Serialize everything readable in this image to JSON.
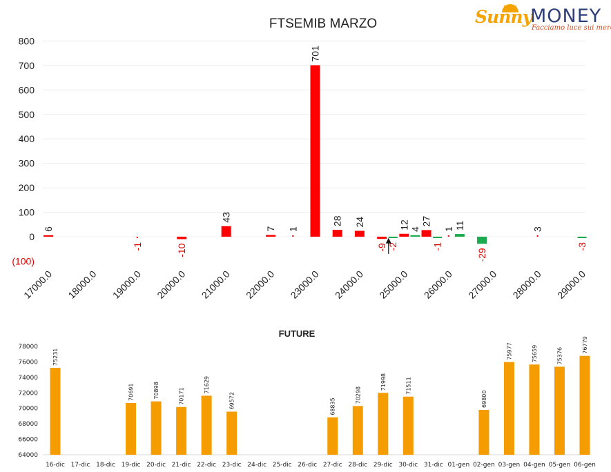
{
  "logo": {
    "brand_part1": "Sunny",
    "brand_part2": "MONEY",
    "tagline": "Facciamo luce sui mercati",
    "colors": {
      "sunny": "#f5a300",
      "money": "#2f3f7a",
      "tagline": "#d44a1c"
    }
  },
  "chart_data": [
    {
      "type": "bar",
      "title": "FTSEMIB MARZO",
      "xlabel": "",
      "ylabel": "",
      "ylim": [
        -100,
        800
      ],
      "yticks": [
        -100,
        0,
        100,
        200,
        300,
        400,
        500,
        600,
        700,
        800
      ],
      "ytick_labels": [
        "(100)",
        "0",
        "100",
        "200",
        "300",
        "400",
        "500",
        "600",
        "700",
        "800"
      ],
      "xlim": [
        17000,
        29000
      ],
      "xticks": [
        17000,
        18000,
        19000,
        20000,
        21000,
        22000,
        23000,
        24000,
        25000,
        26000,
        27000,
        28000,
        29000
      ],
      "xtick_labels": [
        "17000.0",
        "18000.0",
        "19000.0",
        "20000.0",
        "21000.0",
        "22000.0",
        "23000.0",
        "24000.0",
        "25000.0",
        "26000.0",
        "27000.0",
        "28000.0",
        "29000.0"
      ],
      "grid": true,
      "colors": {
        "positive": "#ff0000",
        "negative": "#ff0000",
        "green": "#1aab4e"
      },
      "bars": [
        {
          "x": 17000,
          "value": 6,
          "label": "6",
          "color": "red"
        },
        {
          "x": 18000,
          "value": 0,
          "label": "",
          "color": "red"
        },
        {
          "x": 19000,
          "value": -1,
          "label": "-1",
          "color": "red"
        },
        {
          "x": 20000,
          "value": -10,
          "label": "-10",
          "color": "red"
        },
        {
          "x": 21000,
          "value": 43,
          "label": "43",
          "color": "red"
        },
        {
          "x": 22000,
          "value": 7,
          "label": "7",
          "color": "red"
        },
        {
          "x": 22500,
          "value": 1,
          "label": "1",
          "color": "red"
        },
        {
          "x": 23000,
          "value": 701,
          "label": "701",
          "color": "red"
        },
        {
          "x": 23500,
          "value": 28,
          "label": "28",
          "color": "red"
        },
        {
          "x": 24000,
          "value": 24,
          "label": "24",
          "color": "red"
        },
        {
          "x": 24500,
          "value": -9,
          "label": "-9",
          "color": "red"
        },
        {
          "x": 24750,
          "value": -2,
          "label": "-2",
          "color": "green"
        },
        {
          "x": 25000,
          "value": 12,
          "label": "12",
          "color": "red"
        },
        {
          "x": 25250,
          "value": 4,
          "label": "4",
          "color": "green"
        },
        {
          "x": 25500,
          "value": 27,
          "label": "27",
          "color": "red"
        },
        {
          "x": 25750,
          "value": -1,
          "label": "-1",
          "color": "green"
        },
        {
          "x": 26000,
          "value": 1,
          "label": "1",
          "color": "red"
        },
        {
          "x": 26250,
          "value": 11,
          "label": "11",
          "color": "green"
        },
        {
          "x": 26750,
          "value": -29,
          "label": "-29",
          "color": "green"
        },
        {
          "x": 28000,
          "value": 3,
          "label": "3",
          "color": "red"
        },
        {
          "x": 29000,
          "value": -3,
          "label": "-3",
          "color": "green"
        }
      ],
      "marker": {
        "x": 24650,
        "from_value": -70,
        "to_value": -5
      }
    },
    {
      "type": "bar",
      "title": "FUTURE",
      "xlabel": "",
      "ylabel": "",
      "ylim": [
        64000,
        78000
      ],
      "yticks": [
        64000,
        66000,
        68000,
        70000,
        72000,
        74000,
        76000,
        78000
      ],
      "ytick_labels": [
        "64000",
        "66000",
        "68000",
        "70000",
        "72000",
        "74000",
        "76000",
        "78000"
      ],
      "grid": false,
      "color": "#f59c00",
      "categories": [
        "16-dic",
        "17-dic",
        "18-dic",
        "19-dic",
        "20-dic",
        "21-dic",
        "22-dic",
        "23-dic",
        "24-dic",
        "25-dic",
        "26-dic",
        "27-dic",
        "28-dic",
        "29-dic",
        "30-dic",
        "31-dic",
        "01-gen",
        "02-gen",
        "03-gen",
        "04-gen",
        "05-gen",
        "06-gen"
      ],
      "values": [
        75231,
        null,
        null,
        70691,
        70898,
        70171,
        71629,
        69572,
        null,
        null,
        null,
        68835,
        70298,
        71998,
        71511,
        null,
        null,
        69800,
        75977,
        75659,
        75376,
        76779
      ],
      "data_labels": [
        "75231",
        "",
        "",
        "70691",
        "70898",
        "70171",
        "71629",
        "69572",
        "",
        "",
        "",
        "68835",
        "70298",
        "71998",
        "71511",
        "",
        "",
        "69800",
        "75977",
        "75659",
        "75376",
        "76779"
      ]
    }
  ]
}
